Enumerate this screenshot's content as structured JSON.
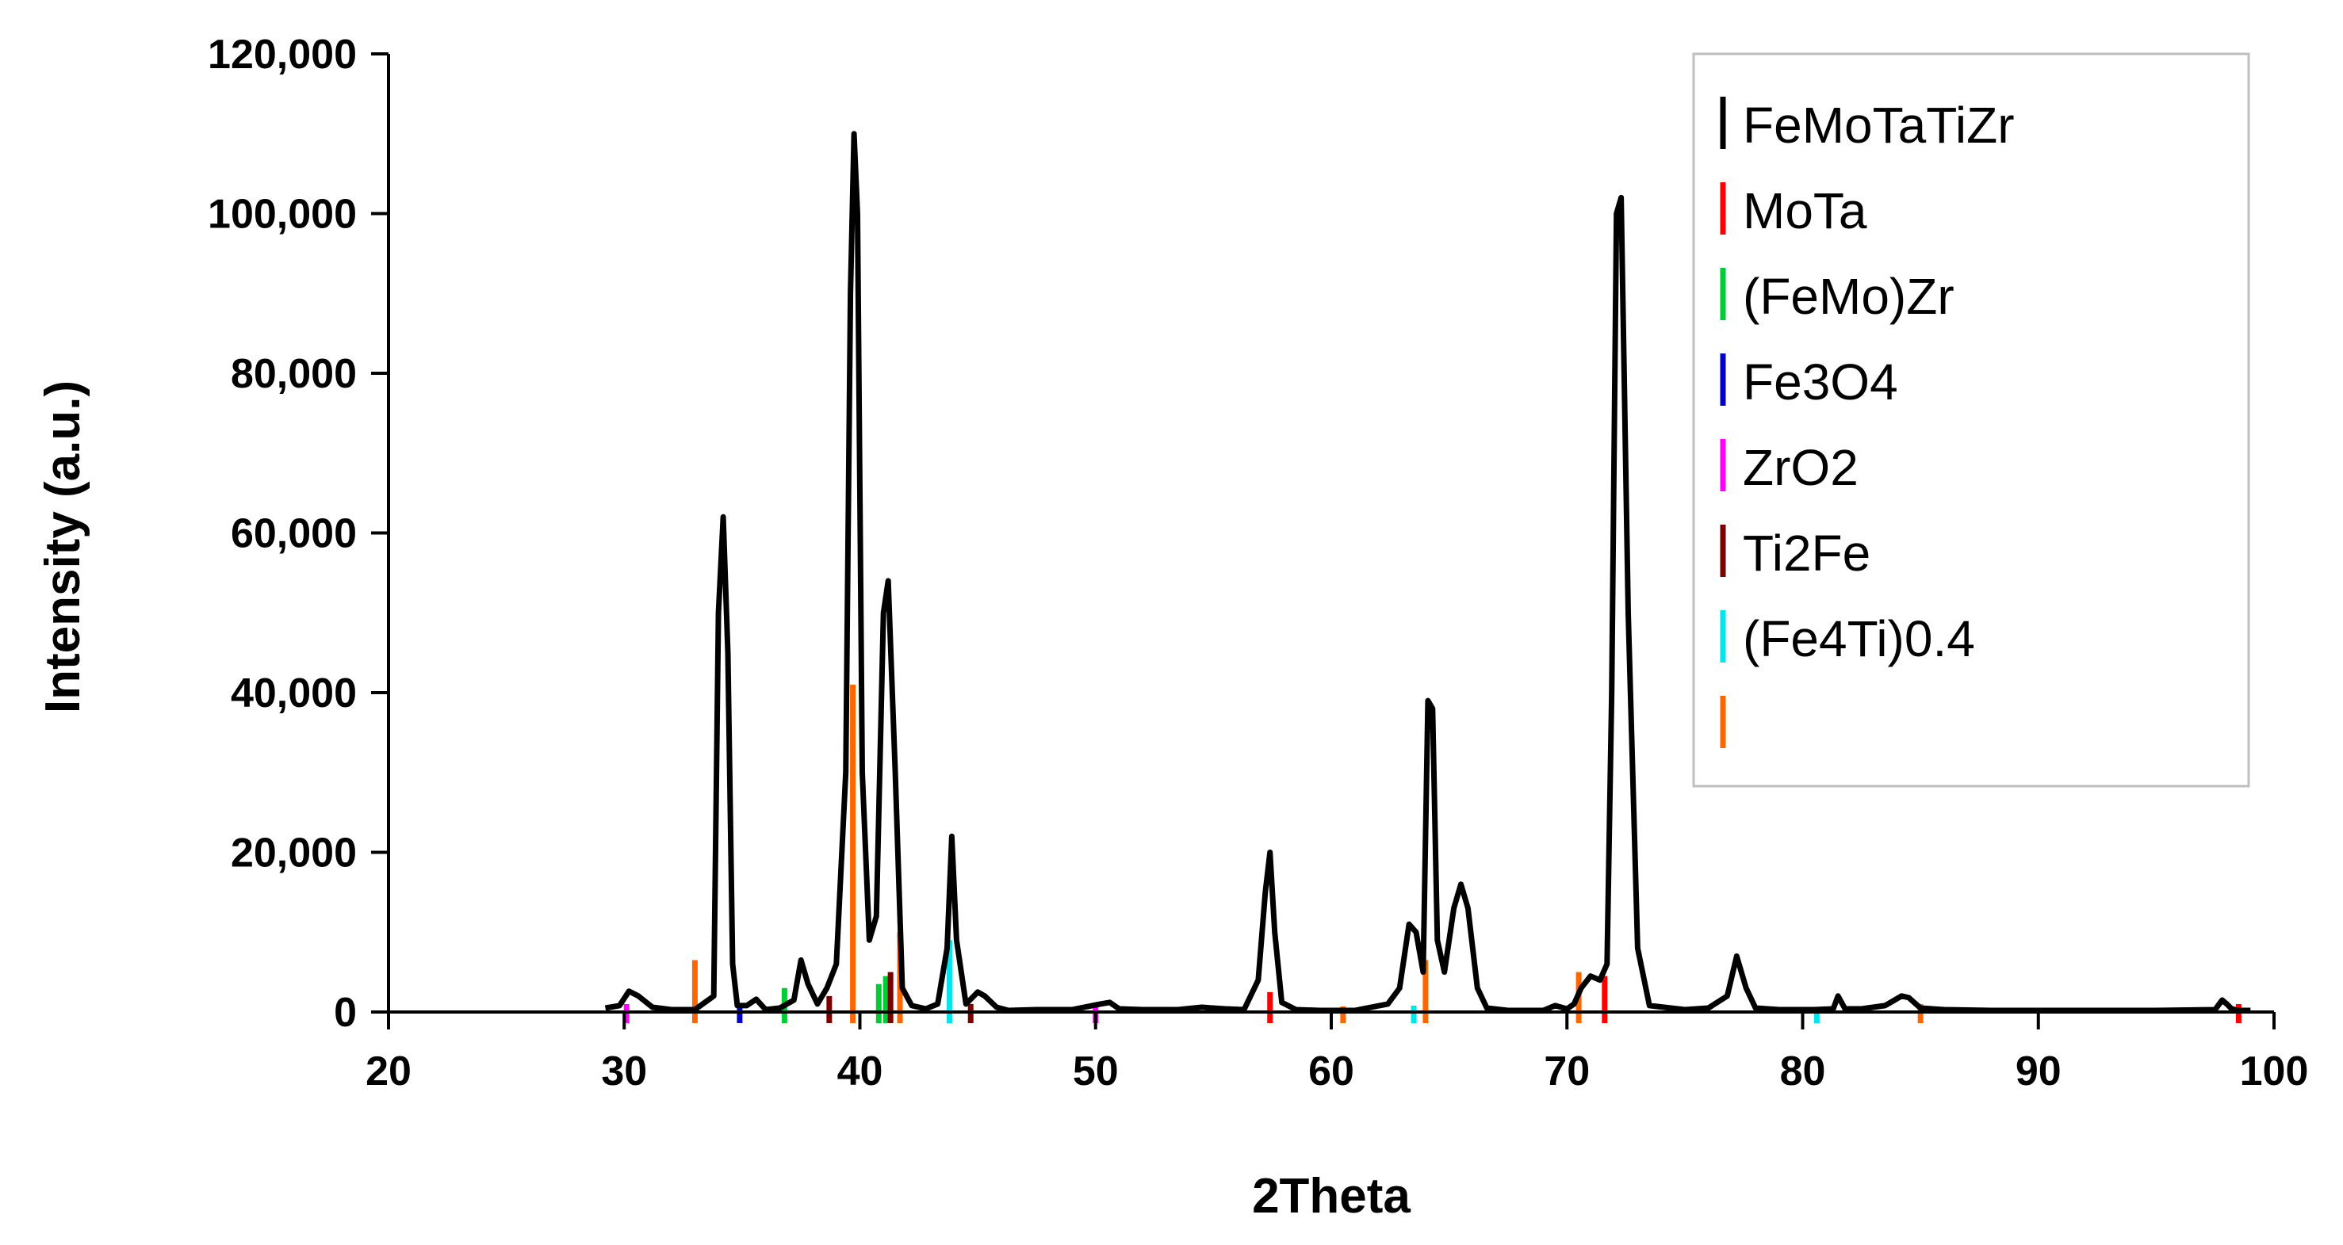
{
  "chart_data": {
    "type": "line",
    "title": "",
    "xlabel": "2Theta",
    "ylabel": "Intensity (a.u.)",
    "xlim": [
      20,
      100
    ],
    "ylim": [
      0,
      120000
    ],
    "x_ticks": [
      20,
      30,
      40,
      50,
      60,
      70,
      80,
      90,
      100
    ],
    "y_ticks": [
      0,
      20000,
      40000,
      60000,
      80000,
      100000,
      120000
    ],
    "x_tick_labels": [
      "20",
      "30",
      "40",
      "50",
      "60",
      "70",
      "80",
      "90",
      "100"
    ],
    "y_tick_labels": [
      "0",
      "20,000",
      "40,000",
      "60,000",
      "80,000",
      "100,000",
      "120,000"
    ],
    "grid": false,
    "legend_position": "top-right",
    "series": [
      {
        "name": "FeMoTaTiZr",
        "color": "#000000",
        "x": [
          29.2,
          29.8,
          30.2,
          30.6,
          31.2,
          32,
          33,
          33.8,
          34.0,
          34.2,
          34.4,
          34.6,
          34.8,
          35.2,
          35.6,
          36.0,
          36.6,
          37.2,
          37.5,
          37.8,
          38.2,
          38.6,
          39.0,
          39.4,
          39.6,
          39.75,
          39.9,
          40.1,
          40.4,
          40.7,
          41.0,
          41.2,
          41.5,
          41.8,
          42.2,
          42.8,
          43.3,
          43.7,
          43.9,
          44.1,
          44.5,
          45.0,
          45.3,
          45.8,
          46.3,
          47.5,
          49.0,
          50.2,
          50.6,
          51.0,
          52.0,
          53.5,
          54.5,
          55.5,
          56.3,
          56.9,
          57.2,
          57.4,
          57.6,
          57.9,
          58.5,
          59.5,
          61,
          62.4,
          62.9,
          63.3,
          63.6,
          63.9,
          64.1,
          64.3,
          64.5,
          64.8,
          65.2,
          65.5,
          65.8,
          66.2,
          66.6,
          67.5,
          69.0,
          69.5,
          70.0,
          70.3,
          70.6,
          71.0,
          71.4,
          71.7,
          71.9,
          72.1,
          72.3,
          72.6,
          73.0,
          73.5,
          75.0,
          76.0,
          76.8,
          77.2,
          77.6,
          78.0,
          79.0,
          80.5,
          81.3,
          81.5,
          81.8,
          82.5,
          83.5,
          84.2,
          84.5,
          85.0,
          86.0,
          88.0,
          92.0,
          95.0,
          97.5,
          97.8,
          98.0,
          98.2,
          98.5,
          99.0
        ],
        "values": [
          500,
          800,
          2600,
          2000,
          600,
          300,
          300,
          2000,
          50000,
          62000,
          45000,
          6000,
          800,
          800,
          1600,
          300,
          500,
          1500,
          6500,
          3500,
          1000,
          3000,
          6000,
          30000,
          90000,
          110000,
          100000,
          30000,
          9000,
          12000,
          50000,
          54000,
          30000,
          3000,
          800,
          400,
          1000,
          8000,
          22000,
          9000,
          1000,
          2500,
          2000,
          600,
          200,
          300,
          300,
          1000,
          1200,
          400,
          300,
          300,
          600,
          400,
          300,
          4000,
          15000,
          20000,
          10000,
          1200,
          300,
          200,
          200,
          1000,
          3000,
          11000,
          10000,
          5000,
          39000,
          38000,
          9000,
          5000,
          13000,
          16000,
          13000,
          3000,
          500,
          200,
          200,
          800,
          400,
          1000,
          3000,
          4500,
          4000,
          6000,
          40000,
          100000,
          102000,
          50000,
          8000,
          800,
          300,
          500,
          2000,
          7000,
          3000,
          500,
          300,
          300,
          400,
          2000,
          400,
          400,
          800,
          2000,
          1800,
          500,
          300,
          200,
          200,
          200,
          300,
          1500,
          1000,
          400,
          200,
          200
        ]
      }
    ],
    "reference_lines": [
      {
        "name": "MoTa",
        "color": "#ff0000",
        "positions": [
          57.4,
          71.6,
          98.5
        ],
        "heights": [
          2500,
          4500,
          1000
        ]
      },
      {
        "name": "(FeMo)Zr",
        "color": "#00cc33",
        "positions": [
          36.8,
          40.8,
          41.1
        ],
        "heights": [
          3000,
          3500,
          4500
        ]
      },
      {
        "name": "Fe3O4",
        "color": "#0000cc",
        "positions": [
          34.9
        ],
        "heights": [
          1000
        ]
      },
      {
        "name": "ZrO2",
        "color": "#ff00ff",
        "positions": [
          30.1,
          50.0
        ],
        "heights": [
          1000,
          800
        ]
      },
      {
        "name": "Ti2Fe",
        "color": "#7b0000",
        "positions": [
          38.7,
          41.3,
          44.7
        ],
        "heights": [
          2000,
          5000,
          1000
        ]
      },
      {
        "name": "(Fe4Ti)0.4",
        "color": "#00e5ee",
        "positions": [
          43.8,
          63.5,
          80.6
        ],
        "heights": [
          9000,
          800,
          500
        ]
      },
      {
        "name": "",
        "color": "#ff6600",
        "positions": [
          33.0,
          39.7,
          41.7,
          60.5,
          64.0,
          70.5,
          85.0
        ],
        "heights": [
          6500,
          41000,
          10000,
          700,
          6500,
          5000,
          1000
        ]
      }
    ]
  }
}
